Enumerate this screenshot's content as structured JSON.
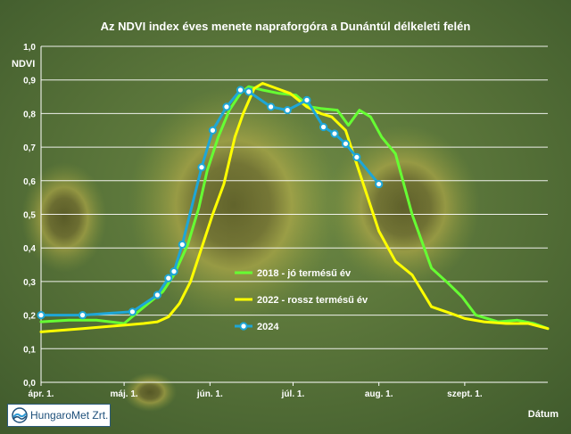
{
  "chart_data": {
    "type": "line",
    "title": "Az NDVI index éves menete napraforgóra a Dunántúl délkeleti felén",
    "xlabel": "Dátum",
    "ylabel": "NDVI",
    "ylim": [
      0,
      1.0
    ],
    "yticks": [
      "0,0",
      "0,1",
      "0,2",
      "0,3",
      "0,4",
      "0,5",
      "0,6",
      "0,7",
      "0,8",
      "0,9",
      "1,0"
    ],
    "xlim": [
      0,
      183
    ],
    "xticks": [
      {
        "label": "ápr. 1.",
        "day": 0
      },
      {
        "label": "máj. 1.",
        "day": 30
      },
      {
        "label": "jún. 1.",
        "day": 61
      },
      {
        "label": "júl. 1.",
        "day": 91
      },
      {
        "label": "aug. 1.",
        "day": 122
      },
      {
        "label": "szept. 1.",
        "day": 153
      }
    ],
    "grid": true,
    "legend_position": "right-middle",
    "series": [
      {
        "name": "2018 - jó termésű év",
        "color": "#66ff33",
        "markers": false,
        "x": [
          0,
          10,
          20,
          30,
          38,
          44,
          48,
          53,
          57,
          60,
          64,
          68,
          72,
          75,
          80,
          86,
          92,
          97,
          101,
          107,
          111,
          115,
          119,
          123,
          128,
          134,
          141,
          147,
          152,
          157,
          165,
          172,
          178,
          183
        ],
        "y": [
          0.18,
          0.185,
          0.185,
          0.175,
          0.23,
          0.27,
          0.32,
          0.41,
          0.52,
          0.63,
          0.73,
          0.81,
          0.86,
          0.88,
          0.87,
          0.86,
          0.855,
          0.82,
          0.815,
          0.81,
          0.765,
          0.81,
          0.79,
          0.73,
          0.68,
          0.5,
          0.34,
          0.295,
          0.255,
          0.2,
          0.18,
          0.185,
          0.175,
          0.16
        ]
      },
      {
        "name": "2022 - rossz termésű év",
        "color": "#ffff00",
        "markers": false,
        "x": [
          0,
          15,
          30,
          37,
          42,
          46,
          50,
          54,
          58,
          62,
          66,
          70,
          73,
          77,
          80,
          85,
          90,
          96,
          101,
          105,
          110,
          116,
          122,
          128,
          134,
          141,
          148,
          153,
          160,
          168,
          176,
          183
        ],
        "y": [
          0.15,
          0.16,
          0.17,
          0.175,
          0.18,
          0.195,
          0.235,
          0.3,
          0.4,
          0.5,
          0.59,
          0.73,
          0.8,
          0.875,
          0.89,
          0.875,
          0.86,
          0.82,
          0.8,
          0.79,
          0.75,
          0.6,
          0.45,
          0.36,
          0.32,
          0.225,
          0.205,
          0.19,
          0.18,
          0.175,
          0.175,
          0.16
        ]
      },
      {
        "name": "2024",
        "color": "#1ea6d6",
        "markers": true,
        "x": [
          0,
          15,
          33,
          42,
          46,
          48,
          51,
          58,
          62,
          67,
          72,
          75,
          83,
          89,
          96,
          102,
          106,
          110,
          114,
          122
        ],
        "y": [
          0.2,
          0.2,
          0.21,
          0.26,
          0.31,
          0.33,
          0.41,
          0.64,
          0.75,
          0.82,
          0.87,
          0.865,
          0.82,
          0.81,
          0.84,
          0.76,
          0.74,
          0.71,
          0.67,
          0.59
        ]
      }
    ]
  },
  "logo": {
    "text": "HungaroMet Zrt.",
    "icon": "hungaromet-logo-icon"
  }
}
